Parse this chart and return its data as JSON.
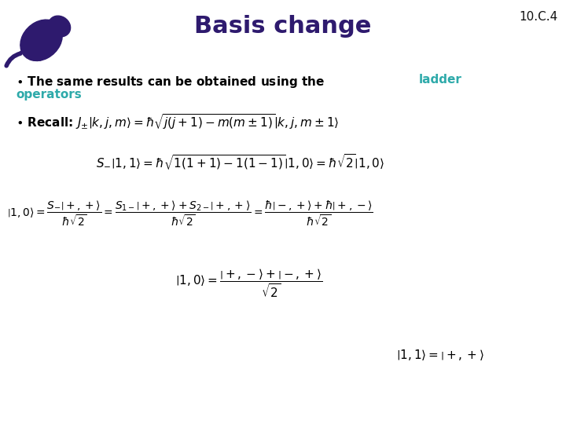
{
  "title": "Basis change",
  "slide_number": "10.C.4",
  "background_color": "#ffffff",
  "title_color": "#2E1A6E",
  "title_fontsize": 22,
  "slide_num_color": "#111111",
  "slide_num_fontsize": 11,
  "cyan_color": "#2EAAAA",
  "text_color": "#000000",
  "gecko_color": "#2E1A6E",
  "bullet1_black": "• The same results can be obtained using the ",
  "bullet1_cyan_word1": "ladder",
  "bullet1_cyan_word2": "operators",
  "text_fontsize": 11,
  "formula_fontsize": 10
}
